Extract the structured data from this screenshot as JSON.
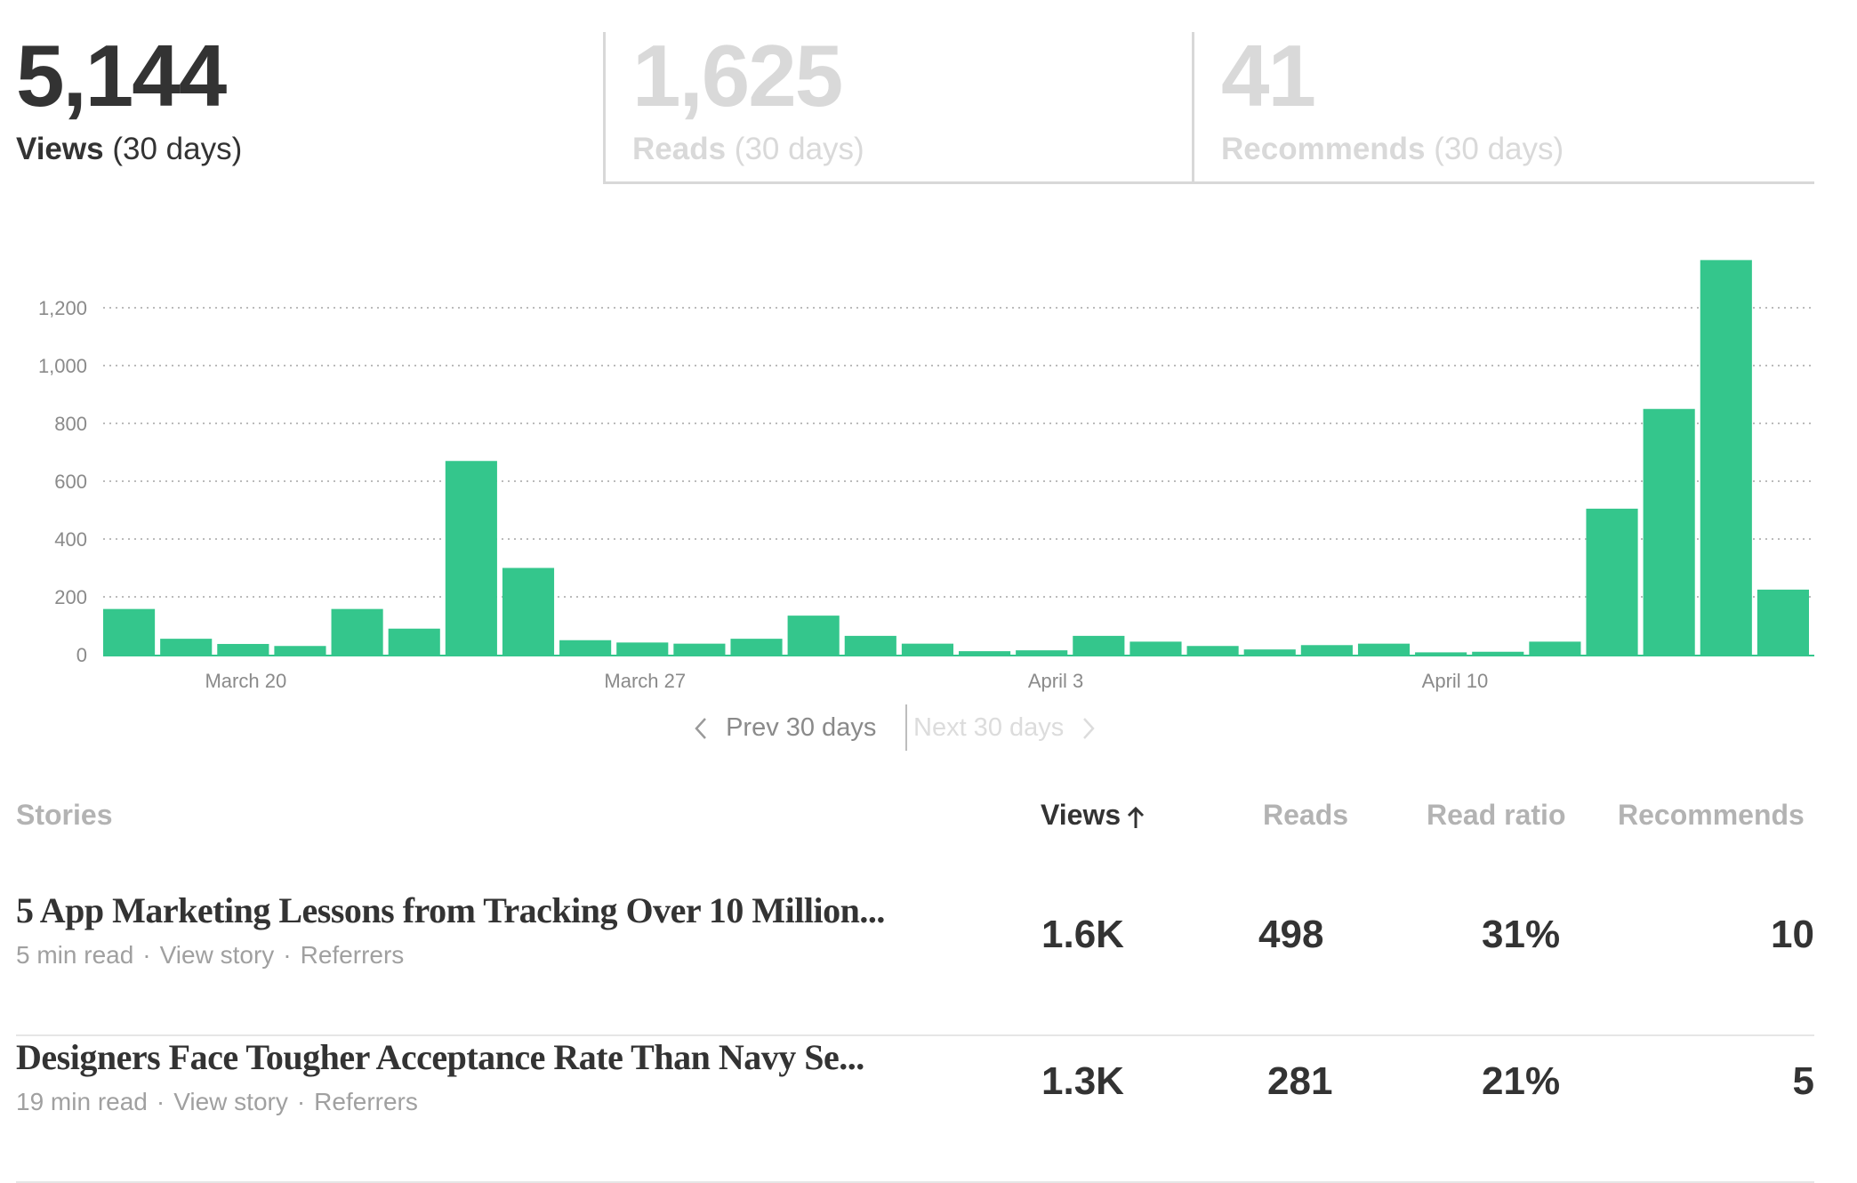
{
  "metrics": {
    "views": {
      "number": "5,144",
      "label_bold": "Views",
      "label_rest": "(30 days)"
    },
    "reads": {
      "number": "1,625",
      "label_bold": "Reads",
      "label_rest": "(30 days)"
    },
    "recommends": {
      "number": "41",
      "label_bold": "Recommends",
      "label_rest": "(30 days)"
    }
  },
  "chart_data": {
    "type": "bar",
    "bar_color": "#34c68c",
    "ylim": [
      0,
      1360
    ],
    "yticks": [
      0,
      200,
      400,
      600,
      800,
      1000,
      1200
    ],
    "ytick_labels": [
      "0",
      "200",
      "400",
      "600",
      "800",
      "1,000",
      "1,200"
    ],
    "values": [
      158,
      55,
      37,
      30,
      158,
      90,
      670,
      300,
      50,
      42,
      38,
      55,
      135,
      65,
      38,
      12,
      15,
      65,
      45,
      30,
      18,
      33,
      38,
      8,
      10,
      45,
      505,
      850,
      1365,
      225
    ],
    "xtick_labels": [
      {
        "index": 2.5,
        "label": "March 20"
      },
      {
        "index": 9.5,
        "label": "March 27"
      },
      {
        "index": 16.7,
        "label": "April 3"
      },
      {
        "index": 23.7,
        "label": "April 10"
      }
    ],
    "grid": "dotted horizontal"
  },
  "pager": {
    "prev": "Prev 30 days",
    "next": "Next 30 days"
  },
  "table": {
    "headers": {
      "stories": "Stories",
      "views": "Views",
      "reads": "Reads",
      "read_ratio": "Read ratio",
      "recommends": "Recommends"
    },
    "rows": [
      {
        "title": "5 App Marketing Lessons from Tracking Over 10 Million...",
        "read_time": "5 min read",
        "view_story": "View story",
        "referrers": "Referrers",
        "views": "1.6K",
        "reads": "498",
        "read_ratio": "31%",
        "recommends": "10"
      },
      {
        "title": "Designers Face Tougher Acceptance Rate Than Navy Se...",
        "read_time": "19 min read",
        "view_story": "View story",
        "referrers": "Referrers",
        "views": "1.3K",
        "reads": "281",
        "read_ratio": "21%",
        "recommends": "5"
      }
    ]
  }
}
